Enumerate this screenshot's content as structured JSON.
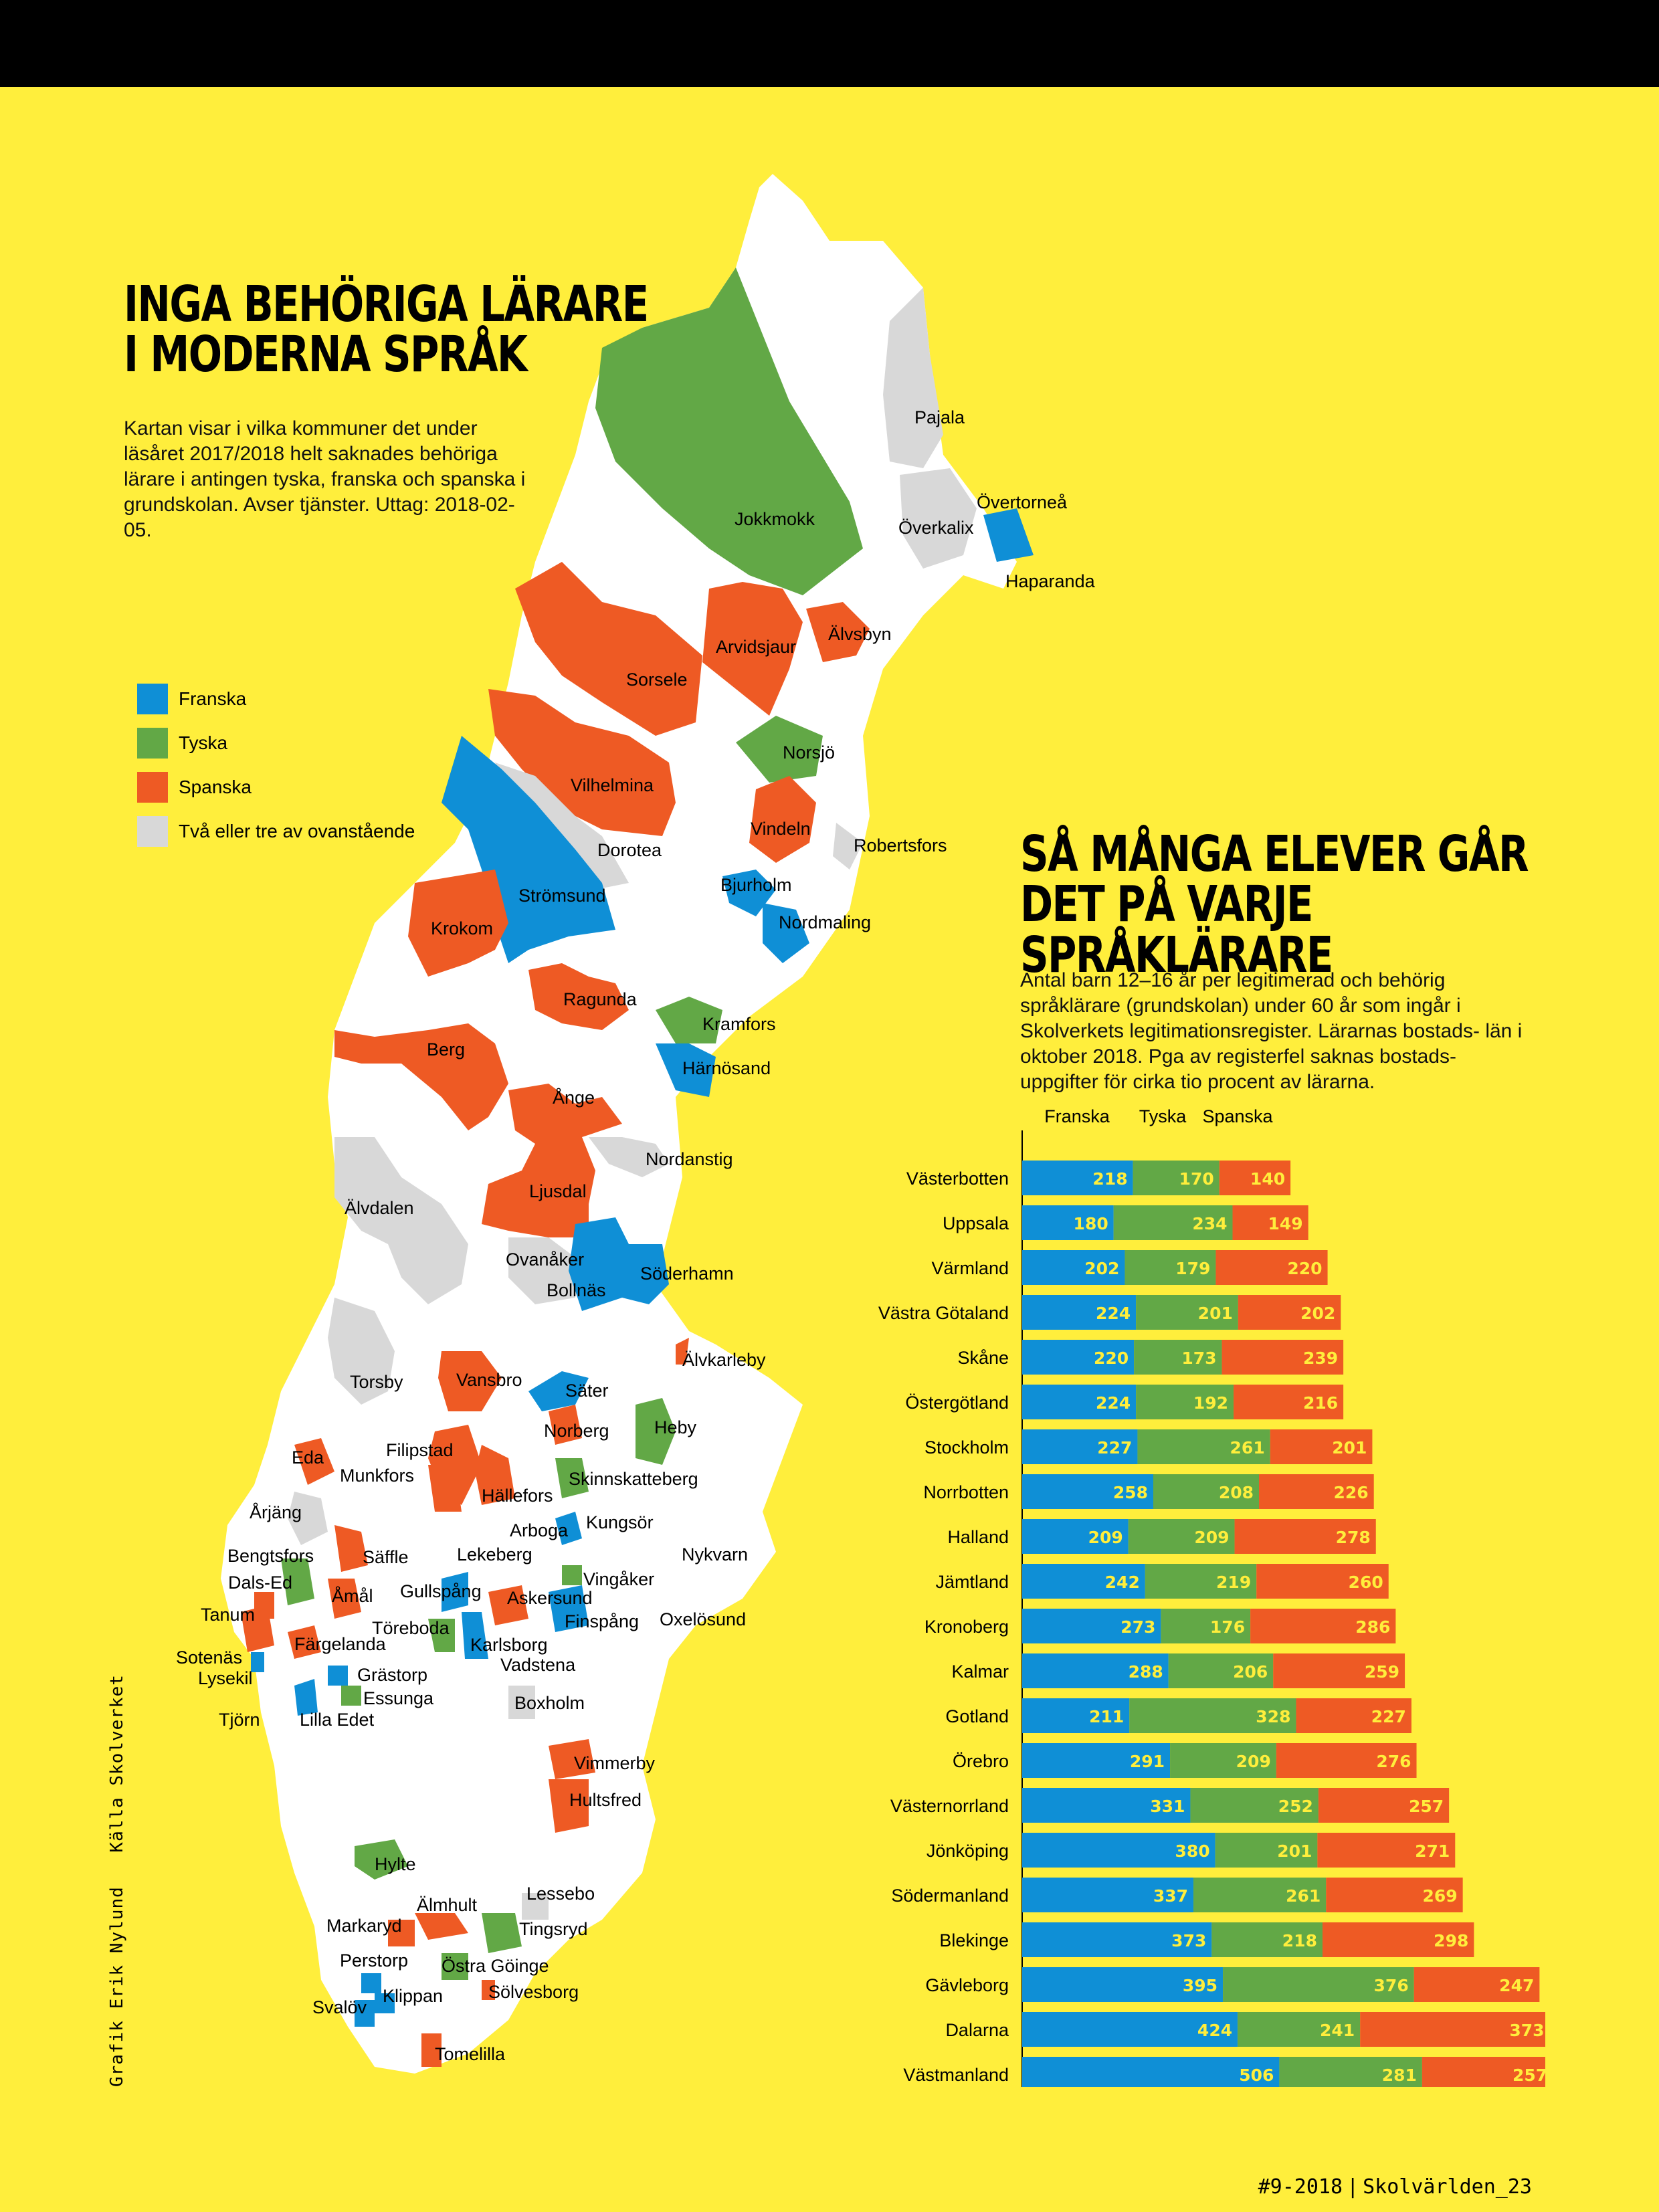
{
  "map_section": {
    "title_line1": "INGA BEHÖRIGA LÄRARE",
    "title_line2": "I MODERNA SPRÅK",
    "intro": "Kartan visar i vilka kommuner det under läsåret 2017/2018 helt saknades behöriga lärare i antingen tyska, franska och spanska i grundskolan. Avser tjänster. Uttag: 2018-02-05.",
    "legend": [
      {
        "label": "Franska",
        "color": "#0f8fd6"
      },
      {
        "label": "Tyska",
        "color": "#62a846"
      },
      {
        "label": "Spanska",
        "color": "#ee5a24"
      },
      {
        "label": "Två eller tre av ovanstående",
        "color": "#d8d8d8"
      }
    ]
  },
  "map_labels": [
    "Pajala",
    "Övertorneå",
    "Överkalix",
    "Haparanda",
    "Jokkmokk",
    "Arvidsjaur",
    "Älvsbyn",
    "Sorsele",
    "Norsjö",
    "Vilhelmina",
    "Dorotea",
    "Vindeln",
    "Robertsfors",
    "Bjurholm",
    "Nordmaling",
    "Strömsund",
    "Krokom",
    "Ragunda",
    "Kramfors",
    "Härnösand",
    "Berg",
    "Ånge",
    "Nordanstig",
    "Ljusdal",
    "Älvdalen",
    "Ovanåker",
    "Bollnäs",
    "Söderhamn",
    "Älvkarleby",
    "Torsby",
    "Vansbro",
    "Säter",
    "Norberg",
    "Heby",
    "Eda",
    "Filipstad",
    "Munkfors",
    "Skinnskatteberg",
    "Hällefors",
    "Årjäng",
    "Arboga",
    "Kungsör",
    "Bengtsfors",
    "Säffle",
    "Lekeberg",
    "Nykvarn",
    "Dals-Ed",
    "Åmål",
    "Gullspång",
    "Vingåker",
    "Askersund",
    "Tanum",
    "Töreboda",
    "Finspång",
    "Oxelösund",
    "Färgelanda",
    "Karlsborg",
    "Sotenäs",
    "Vadstena",
    "Lysekil",
    "Grästorp",
    "Essunga",
    "Tjörn",
    "Lilla Edet",
    "Boxholm",
    "Vimmerby",
    "Hultsfred",
    "Hylte",
    "Lessebo",
    "Älmhult",
    "Markaryd",
    "Tingsryd",
    "Perstorp",
    "Östra Göinge",
    "Klippan",
    "Sölvesborg",
    "Svalöv",
    "Tomelilla"
  ],
  "chart_section": {
    "title_line1": "SÅ MÅNGA ELEVER GÅR",
    "title_line2": "DET PÅ VARJE SPRÅKLÄRARE",
    "intro": "Antal barn 12–16 år per legitimerad och behörig språklärare (grundskolan) under 60 år som ingår i Skolverkets legitimationsregister. Lärarnas bostads- län i oktober 2018. Pga av registerfel saknas bostads- uppgifter för cirka tio procent av lärarna."
  },
  "chart_data": {
    "type": "bar",
    "stacked": true,
    "orientation": "horizontal",
    "categories": [
      "Västerbotten",
      "Uppsala",
      "Värmland",
      "Västra Götaland",
      "Skåne",
      "Östergötland",
      "Stockholm",
      "Norrbotten",
      "Halland",
      "Jämtland",
      "Kronoberg",
      "Kalmar",
      "Gotland",
      "Örebro",
      "Västernorrland",
      "Jönköping",
      "Södermanland",
      "Blekinge",
      "Gävleborg",
      "Dalarna",
      "Västmanland"
    ],
    "series": [
      {
        "name": "Franska",
        "color": "#0f8fd6",
        "values": [
          218,
          180,
          202,
          224,
          220,
          224,
          227,
          258,
          209,
          242,
          273,
          288,
          211,
          291,
          331,
          380,
          337,
          373,
          395,
          424,
          506
        ]
      },
      {
        "name": "Tyska",
        "color": "#62a846",
        "values": [
          170,
          234,
          179,
          201,
          173,
          192,
          261,
          208,
          209,
          219,
          176,
          206,
          328,
          209,
          252,
          201,
          261,
          218,
          376,
          241,
          281
        ]
      },
      {
        "name": "Spanska",
        "color": "#ee5a24",
        "values": [
          140,
          149,
          220,
          202,
          239,
          216,
          201,
          226,
          278,
          260,
          286,
          259,
          227,
          276,
          257,
          271,
          269,
          298,
          247,
          373,
          257
        ]
      }
    ],
    "label_color": "#ffee3c",
    "legend_placement": "top"
  },
  "credit": {
    "grafik": "Grafik Erik Nylund",
    "kalla": "Källa Skolverket"
  },
  "footer": {
    "issue": "#9-2018",
    "magazine": "Skolvärlden_23"
  }
}
